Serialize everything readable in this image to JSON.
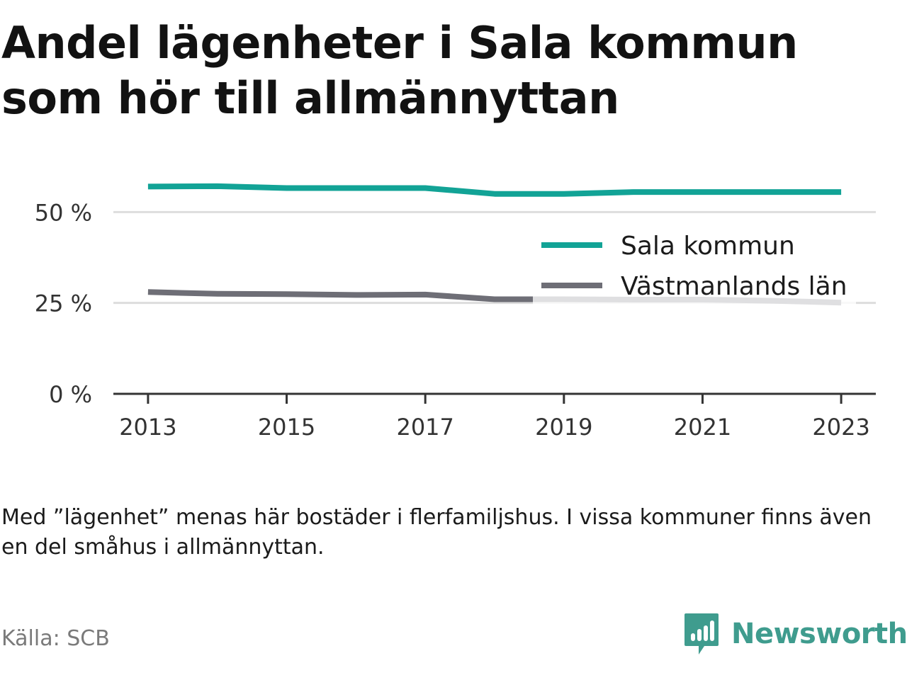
{
  "title": "Andel lägenheter i Sala kommun som hör till allmännyttan",
  "note": "Med ”lägenhet” menas här bostäder i flerfamiljshus. I vissa kommuner finns även en del småhus i allmännyttan.",
  "source": "Källa: SCB",
  "brand": {
    "name": "Newsworthy",
    "icon": "newsworthy-logo-icon",
    "color": "#3f9c8e"
  },
  "chart_data": {
    "type": "line",
    "title": "Andel lägenheter i Sala kommun som hör till allmännyttan",
    "xlabel": "",
    "ylabel": "",
    "x": [
      2013,
      2014,
      2015,
      2016,
      2017,
      2018,
      2019,
      2020,
      2021,
      2022,
      2023
    ],
    "xticks": [
      "2013",
      "2015",
      "2017",
      "2019",
      "2021",
      "2023"
    ],
    "xtick_values": [
      2013,
      2015,
      2017,
      2019,
      2021,
      2023
    ],
    "xlim": [
      2012.5,
      2023.5
    ],
    "ylim": [
      0,
      60
    ],
    "yticks": [
      "0 %",
      "25 %",
      "50 %"
    ],
    "ytick_values": [
      0,
      25,
      50
    ],
    "grid": true,
    "legend_position": "top-right",
    "series": [
      {
        "name": "Sala kommun",
        "color": "#12a396",
        "values": [
          57.0,
          57.1,
          56.6,
          56.6,
          56.6,
          55.0,
          55.0,
          55.5,
          55.5,
          55.5,
          55.5
        ]
      },
      {
        "name": "Västmanlands län",
        "color": "#6e6e76",
        "values": [
          28.0,
          27.5,
          27.4,
          27.2,
          27.3,
          26.0,
          26.0,
          25.9,
          25.9,
          25.6,
          25.1
        ]
      }
    ]
  }
}
